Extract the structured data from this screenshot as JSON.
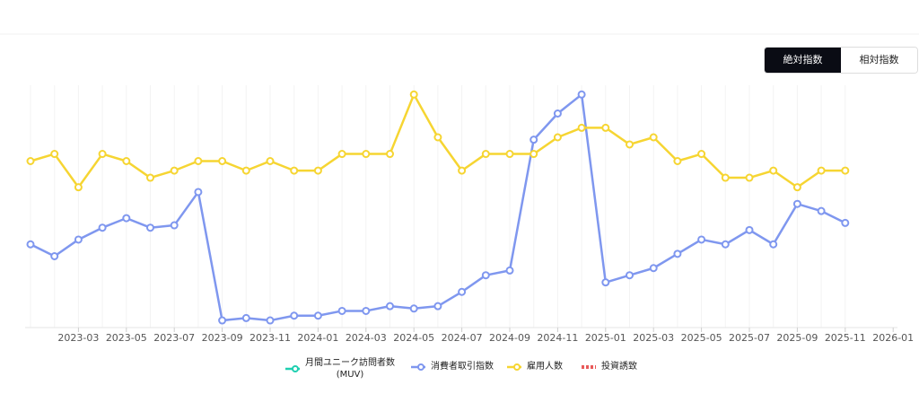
{
  "toggle": [
    "絶対指数",
    "相対指数"
  ],
  "chart_data": {
    "type": "line",
    "x": [
      "2023-01",
      "2023-02",
      "2023-03",
      "2023-04",
      "2023-05",
      "2023-06",
      "2023-07",
      "2023-08",
      "2023-09",
      "2023-10",
      "2023-11",
      "2023-12",
      "2024-01",
      "2024-02",
      "2024-03",
      "2024-04",
      "2024-05",
      "2024-06",
      "2024-07",
      "2024-08",
      "2024-09",
      "2024-10",
      "2024-11",
      "2024-12",
      "2025-01",
      "2025-02",
      "2025-03",
      "2025-04",
      "2025-05",
      "2025-06",
      "2025-07",
      "2025-08",
      "2025-09",
      "2025-10",
      "2025-11"
    ],
    "xticks": [
      "2023-03",
      "2023-05",
      "2023-07",
      "2023-09",
      "2023-11",
      "2024-01",
      "2024-03",
      "2024-05",
      "2024-07",
      "2024-09",
      "2024-11",
      "2025-01",
      "2025-03",
      "2025-05",
      "2025-07",
      "2025-09",
      "2025-11",
      "2026-01"
    ],
    "ylim": [
      0,
      100
    ],
    "grid": true,
    "series": [
      {
        "name": "月間ユニーク訪問者数\n(MUV)",
        "color": "#1fcfb0",
        "values": [
          null,
          null,
          null,
          null,
          null,
          null,
          null,
          null,
          null,
          null,
          null,
          null,
          null,
          null,
          null,
          null,
          null,
          null,
          null,
          null,
          null,
          null,
          null,
          null,
          null,
          null,
          null,
          null,
          null,
          null,
          null,
          null,
          null,
          null,
          null
        ]
      },
      {
        "name": "消費者取引指数",
        "color": "#7f97ef",
        "values": [
          35,
          30,
          37,
          42,
          46,
          42,
          43,
          57,
          3,
          4,
          3,
          5,
          5,
          7,
          7,
          9,
          8,
          9,
          15,
          22,
          24,
          79,
          90,
          98,
          19,
          22,
          25,
          31,
          37,
          35,
          41,
          35,
          52,
          49,
          44
        ]
      },
      {
        "name": "雇用人数",
        "color": "#f6d532",
        "values": [
          70,
          73,
          59,
          73,
          70,
          63,
          66,
          70,
          70,
          66,
          70,
          66,
          66,
          73,
          73,
          73,
          98,
          80,
          66,
          73,
          73,
          73,
          80,
          84,
          84,
          77,
          80,
          70,
          73,
          63,
          63,
          66,
          59,
          66,
          66
        ]
      },
      {
        "name": "投資誘致",
        "color": "#e85a5a",
        "values": [
          null,
          null,
          null,
          null,
          null,
          null,
          null,
          null,
          null,
          null,
          null,
          null,
          null,
          null,
          null,
          null,
          null,
          null,
          null,
          null,
          null,
          null,
          null,
          null,
          null,
          null,
          null,
          null,
          null,
          null,
          null,
          null,
          null,
          null,
          null
        ]
      }
    ]
  }
}
